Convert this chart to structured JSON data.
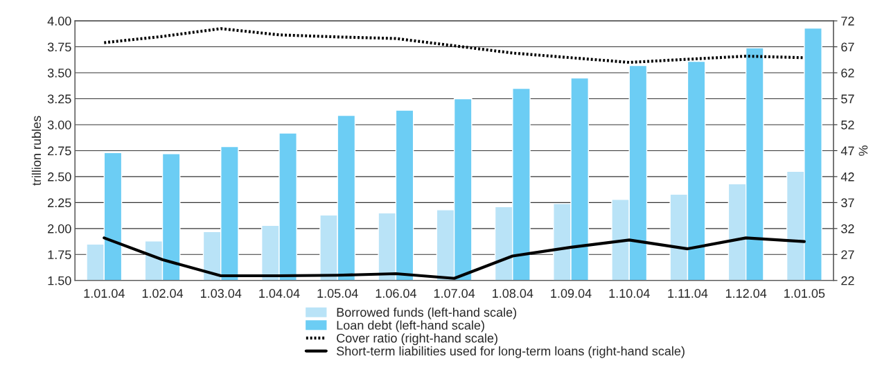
{
  "chart_data": {
    "type": "bar",
    "ylabel": "trillion rubles",
    "y2label": "%",
    "categories": [
      "1.01.04",
      "1.02.04",
      "1.03.04",
      "1.04.04",
      "1.05.04",
      "1.06.04",
      "1.07.04",
      "1.08.04",
      "1.09.04",
      "1.10.04",
      "1.11.04",
      "1.12.04",
      "1.01.05"
    ],
    "series": [
      {
        "name": "Borrowed funds (left-hand scale)",
        "color": "#b9e3f7",
        "values": [
          1.85,
          1.88,
          1.97,
          2.03,
          2.13,
          2.15,
          2.18,
          2.21,
          2.24,
          2.28,
          2.33,
          2.43,
          2.55
        ]
      },
      {
        "name": "Loan debt (left-hand scale)",
        "color": "#6ccdf4",
        "values": [
          2.73,
          2.72,
          2.79,
          2.92,
          3.09,
          3.14,
          3.25,
          3.35,
          3.45,
          3.57,
          3.61,
          3.74,
          3.93
        ]
      },
      {
        "name": "Cover ratio (right-hand scale)",
        "type": "line",
        "axis": "y2",
        "color": "#000000",
        "line_style": "dotted",
        "values": [
          67.8,
          69.0,
          70.5,
          69.3,
          68.9,
          68.6,
          67.2,
          65.8,
          64.9,
          64.0,
          64.6,
          65.2,
          64.9
        ]
      },
      {
        "name": "Short-term liabilities used for long-term loans (right-hand scale)",
        "type": "line",
        "axis": "y2",
        "color": "#000000",
        "line_style": "solid",
        "values": [
          30.2,
          26.0,
          22.9,
          22.9,
          23.0,
          23.3,
          22.4,
          26.7,
          28.4,
          29.8,
          28.1,
          30.2,
          29.5
        ]
      }
    ],
    "ylim": [
      1.5,
      4.0
    ],
    "yticks": [
      {
        "value": 1.5,
        "label": "1.50"
      },
      {
        "value": 1.75,
        "label": "1.75"
      },
      {
        "value": 2.0,
        "label": "2.00"
      },
      {
        "value": 2.25,
        "label": "2.25"
      },
      {
        "value": 2.5,
        "label": "2.50"
      },
      {
        "value": 2.75,
        "label": "2.75"
      },
      {
        "value": 3.0,
        "label": "3.00"
      },
      {
        "value": 3.25,
        "label": "3.25"
      },
      {
        "value": 3.5,
        "label": "3.50"
      },
      {
        "value": 3.75,
        "label": "3.75"
      },
      {
        "value": 4.0,
        "label": "4.00"
      }
    ],
    "y2lim": [
      22,
      72
    ],
    "y2ticks": [
      22,
      27,
      32,
      37,
      42,
      47,
      52,
      57,
      62,
      67,
      72
    ],
    "grid": "y",
    "legend": "bottom"
  }
}
